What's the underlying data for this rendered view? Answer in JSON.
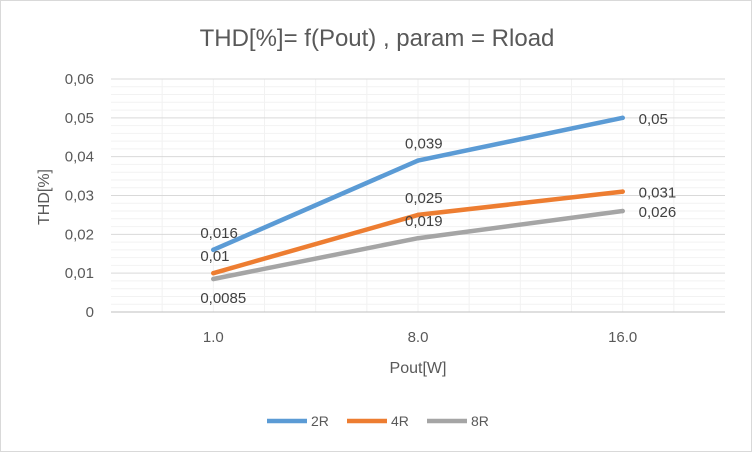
{
  "chart_data": {
    "type": "line",
    "title": "THD[%]=  f(Pout) , param = Rload",
    "xlabel": "Pout[W]",
    "ylabel": "THD[%]",
    "categories": [
      "1.0",
      "8.0",
      "16.0"
    ],
    "ylim": [
      0,
      0.06
    ],
    "yticks": [
      0,
      0.01,
      0.02,
      0.03,
      0.04,
      0.05,
      0.06
    ],
    "ytick_labels": [
      "0",
      "0,01",
      "0,02",
      "0,03",
      "0,04",
      "0,05",
      "0,06"
    ],
    "grid": true,
    "legend_position": "bottom",
    "series": [
      {
        "name": "2R",
        "color": "#5b9bd5",
        "values": [
          0.016,
          0.039,
          0.05
        ],
        "labels": [
          "0,016",
          "0,039",
          "0,05"
        ]
      },
      {
        "name": "4R",
        "color": "#ed7d31",
        "values": [
          0.01,
          0.025,
          0.031
        ],
        "labels": [
          "0,01",
          "0,025",
          "0,031"
        ]
      },
      {
        "name": "8R",
        "color": "#a5a5a5",
        "values": [
          0.0085,
          0.019,
          0.026
        ],
        "labels": [
          "0,0085",
          "0,019",
          "0,026"
        ]
      }
    ]
  }
}
